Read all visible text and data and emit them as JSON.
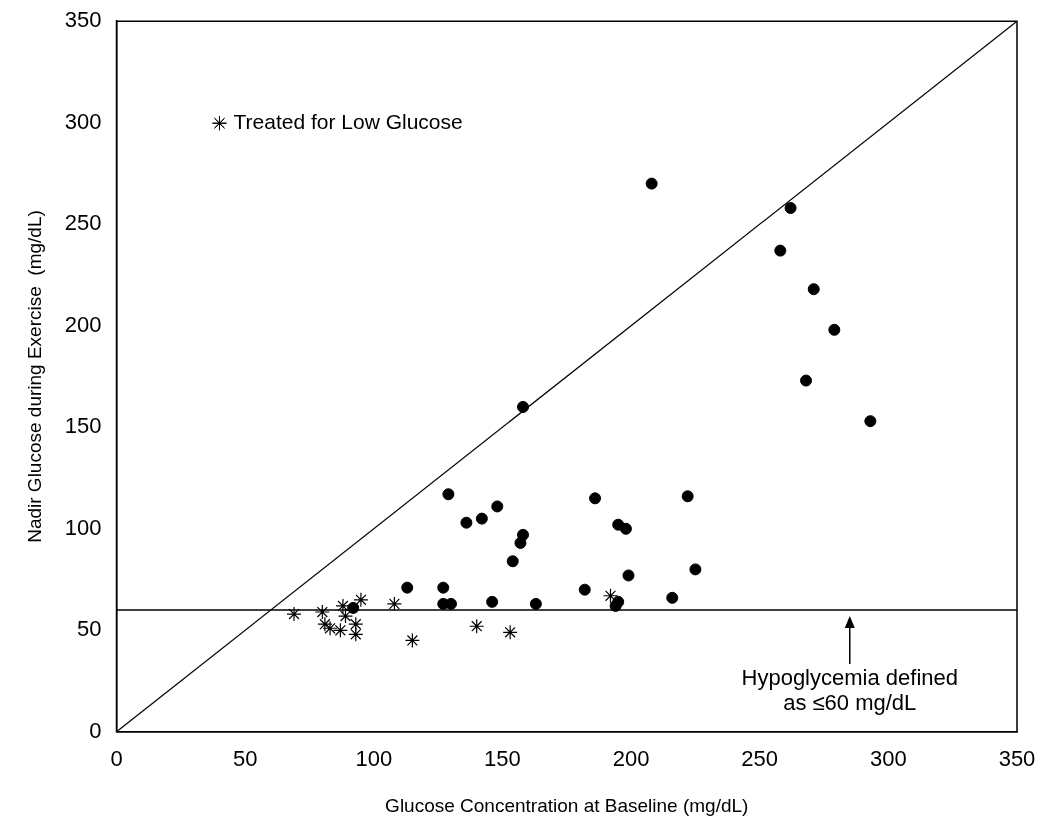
{
  "chart_data": {
    "type": "scatter",
    "xlabel": "Glucose Concentration at Baseline (mg/dL)",
    "ylabel": "Nadir Glucose during Exercise  (mg/dL)",
    "xlim": [
      0,
      350
    ],
    "xticks": [
      0,
      50,
      100,
      150,
      200,
      250,
      300,
      350
    ],
    "ylim": [
      0,
      350
    ],
    "yticks": [
      0,
      50,
      100,
      150,
      200,
      250,
      300,
      350
    ],
    "legend": "top left",
    "series": [
      {
        "type": "scatter",
        "color": "#000000",
        "marker": "circle",
        "x": [
          208,
          262,
          258,
          271,
          279,
          268,
          293,
          158,
          129,
          136,
          142,
          148,
          158,
          157,
          154,
          186,
          195,
          198,
          222,
          199,
          225,
          216,
          182,
          195,
          194,
          113,
          127,
          127,
          130,
          146,
          163,
          92
        ],
        "values": [
          270,
          258,
          237,
          218,
          198,
          173,
          153,
          160,
          117,
          103,
          105,
          111,
          97,
          93,
          84,
          115,
          102,
          100,
          116,
          77,
          80,
          66,
          70,
          64,
          62,
          71,
          71,
          63,
          63,
          64,
          63,
          61
        ]
      },
      {
        "type": "scatter",
        "name": "Treated for Low Glucose",
        "color": "#000000",
        "marker": "cross",
        "x": [
          69,
          80,
          81,
          83,
          87,
          88,
          89,
          93,
          93,
          95,
          108,
          115,
          140,
          153,
          192
        ],
        "values": [
          58,
          59,
          53,
          51,
          50,
          62,
          57,
          48,
          53,
          65,
          63,
          45,
          52,
          49,
          67
        ]
      },
      {
        "type": "line",
        "color": "#000000",
        "marker": "none",
        "x": [
          0,
          350
        ],
        "values": [
          0,
          350
        ]
      }
    ],
    "ref_lines": [
      {
        "axis": "y",
        "value": 60,
        "color": "#000000"
      }
    ],
    "annotations": [
      {
        "text": "Hypoglycemia defined as ≤60 mg/dL",
        "x": 285,
        "y": 60
      }
    ]
  }
}
